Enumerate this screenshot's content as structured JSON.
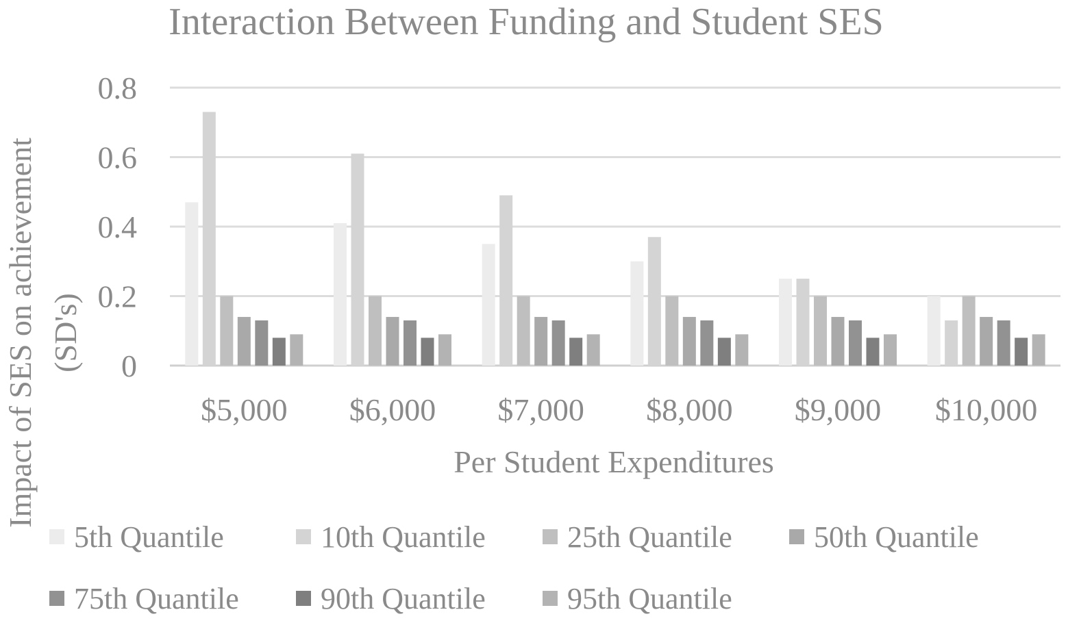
{
  "chart_data": {
    "type": "bar",
    "title": "Interaction Between Funding and Student SES",
    "xlabel": "Per Student Expenditures",
    "ylabel_lines": [
      "Impact of SES on achievement",
      "(SD's)"
    ],
    "categories": [
      "$5,000",
      "$6,000",
      "$7,000",
      "$8,000",
      "$9,000",
      "$10,000"
    ],
    "ylim": [
      0,
      0.8
    ],
    "yticks": [
      0,
      0.2,
      0.4,
      0.6,
      0.8
    ],
    "ytick_labels": [
      "0",
      "0.2",
      "0.4",
      "0.6",
      "0.8"
    ],
    "grid": true,
    "legend_position": "bottom",
    "series": [
      {
        "name": "5th Quantile",
        "color": "#ececec",
        "values": [
          0.47,
          0.41,
          0.35,
          0.3,
          0.25,
          0.2
        ]
      },
      {
        "name": "10th Quantile",
        "color": "#d4d4d4",
        "values": [
          0.73,
          0.61,
          0.49,
          0.37,
          0.25,
          0.13
        ]
      },
      {
        "name": "25th Quantile",
        "color": "#bfbfbf",
        "values": [
          0.2,
          0.2,
          0.2,
          0.2,
          0.2,
          0.2
        ]
      },
      {
        "name": "50th Quantile",
        "color": "#a9a9a9",
        "values": [
          0.14,
          0.14,
          0.14,
          0.14,
          0.14,
          0.14
        ]
      },
      {
        "name": "75th Quantile",
        "color": "#929292",
        "values": [
          0.13,
          0.13,
          0.13,
          0.13,
          0.13,
          0.13
        ]
      },
      {
        "name": "90th Quantile",
        "color": "#7f7f7f",
        "values": [
          0.08,
          0.08,
          0.08,
          0.08,
          0.08,
          0.08
        ]
      },
      {
        "name": "95th Quantile",
        "color": "#b3b3b3",
        "values": [
          0.09,
          0.09,
          0.09,
          0.09,
          0.09,
          0.09
        ]
      }
    ]
  }
}
